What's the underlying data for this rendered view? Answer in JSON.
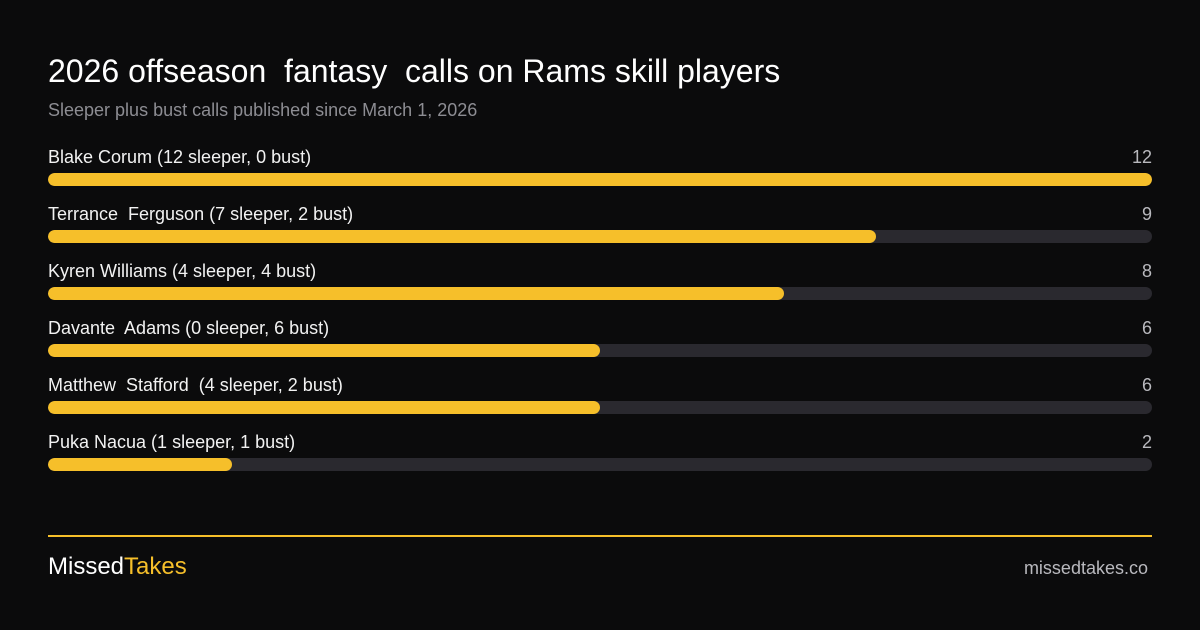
{
  "chart_data": {
    "type": "bar",
    "title": "2026 offseason  fantasy  calls on Rams skill players",
    "subtitle": "Sleeper plus bust calls published since March 1, 2026",
    "categories": [
      "Blake Corum (12 sleeper, 0 bust)",
      "Terrance  Ferguson (7 sleeper, 2 bust)",
      "Kyren Williams (4 sleeper, 4 bust)",
      "Davante  Adams (0 sleeper, 6 bust)",
      "Matthew  Stafford  (4 sleeper, 2 bust)",
      "Puka Nacua (1 sleeper, 1 bust)"
    ],
    "values": [
      12,
      9,
      8,
      6,
      6,
      2
    ],
    "ylim": [
      0,
      12
    ],
    "orientation": "horizontal",
    "colors": {
      "bar": "#f6bf2a",
      "track": "#2a292f"
    }
  },
  "footer": {
    "brand_part1": "Missed",
    "brand_part2": "Takes",
    "domain": "missedtakes.co"
  }
}
